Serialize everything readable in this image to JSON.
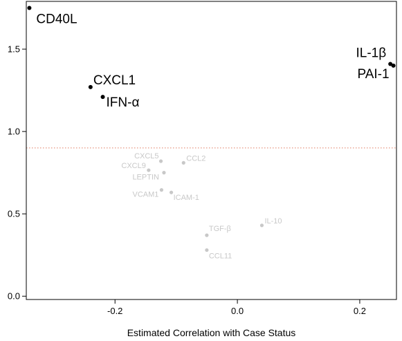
{
  "chart_data": {
    "type": "scatter",
    "xlabel": "Estimated Correlation with Case Status",
    "ylabel": "",
    "xlim": [
      -0.345,
      0.26
    ],
    "ylim": [
      -0.02,
      1.79
    ],
    "x_ticks": [
      {
        "value": -0.2,
        "label": "-0.2"
      },
      {
        "value": 0.0,
        "label": "0.0"
      },
      {
        "value": 0.2,
        "label": "0.2"
      }
    ],
    "y_ticks": [
      {
        "value": 0.0,
        "label": "0.0"
      },
      {
        "value": 0.5,
        "label": "0.5"
      },
      {
        "value": 1.0,
        "label": "1.0"
      },
      {
        "value": 1.5,
        "label": "1.5"
      }
    ],
    "threshold": {
      "y": 0.9,
      "style": "dotted",
      "color": "#e07a5f"
    },
    "colors": {
      "significant": "#000000",
      "not_significant": "#c8c8c8",
      "axis": "#000000"
    },
    "points": [
      {
        "label": "CD40L",
        "x": -0.34,
        "y": 1.75,
        "significant": true
      },
      {
        "label": "CXCL1",
        "x": -0.24,
        "y": 1.27,
        "significant": true
      },
      {
        "label": "IFN-α",
        "x": -0.22,
        "y": 1.21,
        "significant": true
      },
      {
        "label": "IL-1β",
        "x": 0.25,
        "y": 1.41,
        "significant": true
      },
      {
        "label": "PAI-1",
        "x": 0.255,
        "y": 1.4,
        "significant": true
      },
      {
        "label": "CXCL5",
        "x": -0.125,
        "y": 0.82,
        "significant": false
      },
      {
        "label": "CCL2",
        "x": -0.088,
        "y": 0.81,
        "significant": false
      },
      {
        "label": "CXCL9",
        "x": -0.145,
        "y": 0.765,
        "significant": false
      },
      {
        "label": "LEPTIN",
        "x": -0.12,
        "y": 0.75,
        "significant": false
      },
      {
        "label": "VCAM1",
        "x": -0.124,
        "y": 0.645,
        "significant": false
      },
      {
        "label": "ICAM-1",
        "x": -0.108,
        "y": 0.63,
        "significant": false
      },
      {
        "label": "IL-10",
        "x": 0.04,
        "y": 0.43,
        "significant": false
      },
      {
        "label": "TGF-β",
        "x": -0.05,
        "y": 0.37,
        "significant": false
      },
      {
        "label": "CCL11",
        "x": -0.05,
        "y": 0.28,
        "significant": false
      }
    ]
  }
}
